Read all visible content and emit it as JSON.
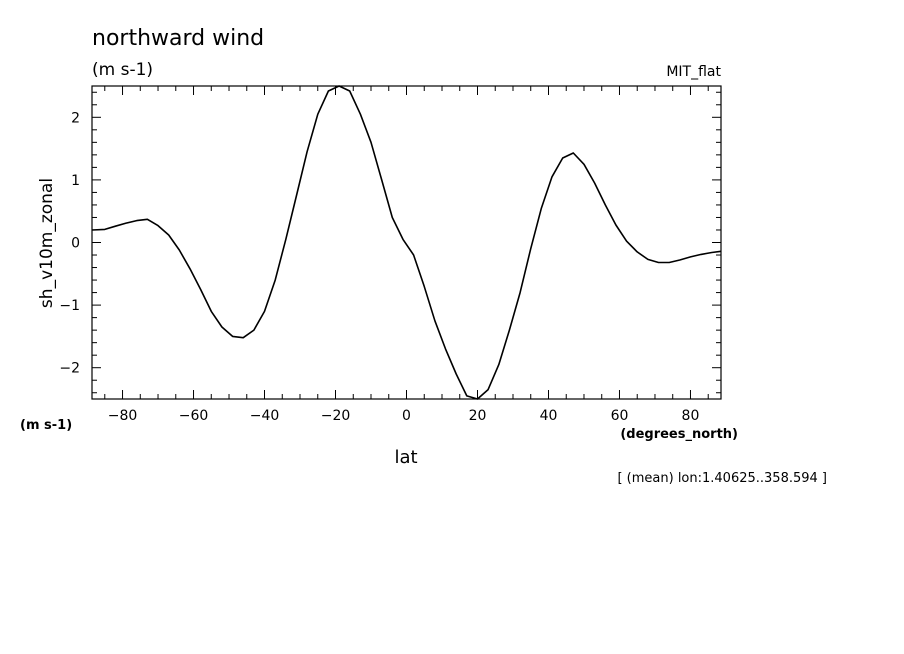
{
  "chart_data": {
    "type": "line",
    "title": "northward wind",
    "subtitle": "(m s-1)",
    "model_label": "MIT_flat",
    "ylabel": "sh_v10m_zonal",
    "yunits": "(m s-1)",
    "xlabel": "lat",
    "xunits": "(degrees_north)",
    "footnote": "[ (mean) lon:1.40625..358.594 ]",
    "xlim": [
      -88.6,
      88.6
    ],
    "ylim": [
      -2.5,
      2.5
    ],
    "xticks": [
      -80,
      -60,
      -40,
      -20,
      0,
      20,
      40,
      60,
      80
    ],
    "xtick_labels": [
      "-80",
      "-60",
      "-40",
      "-20",
      "0",
      "20",
      "40",
      "60",
      "80"
    ],
    "yticks": [
      -2,
      -1,
      0,
      1,
      2
    ],
    "ytick_labels": [
      "-2",
      "-1",
      "0",
      "1",
      "2"
    ],
    "grid": false,
    "x": [
      -88.6,
      -85,
      -82,
      -79,
      -76,
      -73,
      -70,
      -67,
      -64,
      -61,
      -58,
      -55,
      -52,
      -49,
      -46,
      -43,
      -40,
      -37,
      -34,
      -31,
      -28,
      -25,
      -22,
      -19,
      -16,
      -13,
      -10,
      -7,
      -4,
      -1,
      2,
      5,
      8,
      11,
      14,
      17,
      20,
      23,
      26,
      29,
      32,
      35,
      38,
      41,
      44,
      47,
      50,
      53,
      56,
      59,
      62,
      65,
      68,
      71,
      74,
      77,
      80,
      83,
      86,
      88.6
    ],
    "y": [
      0.2,
      0.21,
      0.26,
      0.31,
      0.35,
      0.37,
      0.27,
      0.12,
      -0.12,
      -0.42,
      -0.75,
      -1.1,
      -1.35,
      -1.5,
      -1.52,
      -1.4,
      -1.1,
      -0.6,
      0.05,
      0.75,
      1.45,
      2.05,
      2.42,
      2.52,
      2.42,
      2.05,
      1.6,
      1.0,
      0.4,
      0.05,
      -0.2,
      -0.7,
      -1.25,
      -1.7,
      -2.1,
      -2.45,
      -2.5,
      -2.35,
      -1.95,
      -1.4,
      -0.8,
      -0.1,
      0.55,
      1.05,
      1.35,
      1.43,
      1.25,
      0.95,
      0.6,
      0.28,
      0.02,
      -0.15,
      -0.27,
      -0.32,
      -0.32,
      -0.28,
      -0.23,
      -0.19,
      -0.16,
      -0.14
    ]
  }
}
